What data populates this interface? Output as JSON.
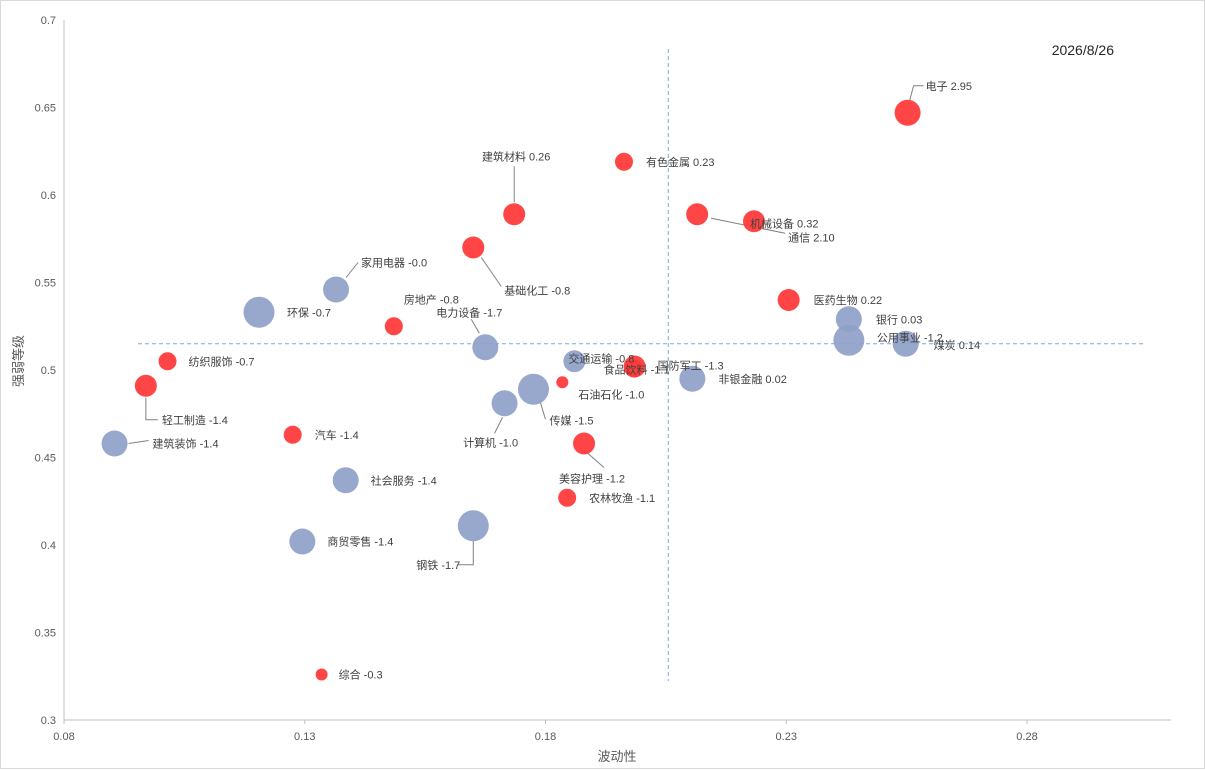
{
  "chart_data": {
    "type": "scatter",
    "title": "",
    "annotation": "2026/8/26",
    "xlabel": "波动性",
    "ylabel": "强弱等级",
    "xlim": [
      0.08,
      0.31
    ],
    "ylim": [
      0.3,
      0.7
    ],
    "xticks": [
      "0.08",
      "0.13",
      "0.18",
      "0.23",
      "0.28"
    ],
    "yticks": [
      "0.3",
      "0.35",
      "0.4",
      "0.45",
      "0.5",
      "0.55",
      "0.6",
      "0.65",
      "0.7"
    ],
    "reference_lines": {
      "x": 0.2055,
      "y": 0.515,
      "style": "dashed"
    },
    "colors": {
      "positive": "#ff3b3b",
      "negative": "#8ea1c8"
    },
    "points": [
      {
        "name": "电子",
        "value": "2.95",
        "x": 0.2552,
        "y": 0.647,
        "size": "large",
        "color": "positive"
      },
      {
        "name": "有色金属",
        "value": "0.23",
        "x": 0.1963,
        "y": 0.619,
        "size": "small",
        "color": "positive"
      },
      {
        "name": "建筑材料",
        "value": "0.26",
        "x": 0.1735,
        "y": 0.589,
        "size": "medium",
        "color": "positive"
      },
      {
        "name": "机械设备",
        "value": "0.32",
        "x": 0.2233,
        "y": 0.585,
        "size": "medium",
        "color": "positive"
      },
      {
        "name": "通信",
        "value": "2.10",
        "x": 0.2115,
        "y": 0.589,
        "size": "medium",
        "color": "positive"
      },
      {
        "name": "基础化工",
        "value": "-0.8",
        "x": 0.165,
        "y": 0.57,
        "size": "medium",
        "color": "positive"
      },
      {
        "name": "家用电器",
        "value": "-0.0",
        "x": 0.1365,
        "y": 0.546,
        "size": "large",
        "color": "negative"
      },
      {
        "name": "医药生物",
        "value": "0.22",
        "x": 0.2305,
        "y": 0.54,
        "size": "medium",
        "color": "positive"
      },
      {
        "name": "环保",
        "value": "-0.7",
        "x": 0.1205,
        "y": 0.533,
        "size": "xlarge",
        "color": "negative"
      },
      {
        "name": "房地产",
        "value": "-0.8",
        "x": 0.1485,
        "y": 0.525,
        "size": "small",
        "color": "positive"
      },
      {
        "name": "银行",
        "value": "0.03",
        "x": 0.243,
        "y": 0.529,
        "size": "large",
        "color": "negative"
      },
      {
        "name": "电力设备",
        "value": "-1.7",
        "x": 0.1675,
        "y": 0.513,
        "size": "large",
        "color": "negative"
      },
      {
        "name": "公用事业",
        "value": "-1.2",
        "x": 0.243,
        "y": 0.517,
        "size": "xlarge",
        "color": "negative"
      },
      {
        "name": "煤炭",
        "value": "0.14",
        "x": 0.2548,
        "y": 0.515,
        "size": "large",
        "color": "negative"
      },
      {
        "name": "纺织服饰",
        "value": "-0.7",
        "x": 0.1015,
        "y": 0.505,
        "size": "small",
        "color": "positive"
      },
      {
        "name": "交通运输",
        "value": "-0.8",
        "x": 0.186,
        "y": 0.505,
        "size": "medium",
        "color": "negative"
      },
      {
        "name": "食品饮料",
        "value": "-1.1",
        "x": 0.1985,
        "y": 0.502,
        "size": "medium",
        "color": "positive"
      },
      {
        "name": "国防军工",
        "value": "-1.3",
        "x": 0.1983,
        "y": 0.501,
        "size": "small",
        "color": "positive"
      },
      {
        "name": "非银金融",
        "value": "0.02",
        "x": 0.2105,
        "y": 0.495,
        "size": "large",
        "color": "negative"
      },
      {
        "name": "轻工制造",
        "value": "-1.4",
        "x": 0.097,
        "y": 0.491,
        "size": "medium",
        "color": "positive"
      },
      {
        "name": "石油石化",
        "value": "-1.0",
        "x": 0.1835,
        "y": 0.493,
        "size": "tiny",
        "color": "positive"
      },
      {
        "name": "传媒",
        "value": "-1.5",
        "x": 0.1775,
        "y": 0.489,
        "size": "xlarge",
        "color": "negative"
      },
      {
        "name": "计算机",
        "value": "-1.0",
        "x": 0.1715,
        "y": 0.481,
        "size": "large",
        "color": "negative"
      },
      {
        "name": "汽车",
        "value": "-1.4",
        "x": 0.1275,
        "y": 0.463,
        "size": "small",
        "color": "positive"
      },
      {
        "name": "建筑装饰",
        "value": "-1.4",
        "x": 0.0905,
        "y": 0.458,
        "size": "large",
        "color": "negative"
      },
      {
        "name": "美容护理",
        "value": "-1.2",
        "x": 0.188,
        "y": 0.458,
        "size": "medium",
        "color": "positive"
      },
      {
        "name": "社会服务",
        "value": "-1.4",
        "x": 0.1385,
        "y": 0.437,
        "size": "large",
        "color": "negative"
      },
      {
        "name": "农林牧渔",
        "value": "-1.1",
        "x": 0.1845,
        "y": 0.427,
        "size": "small",
        "color": "positive"
      },
      {
        "name": "钢铁",
        "value": "-1.7",
        "x": 0.165,
        "y": 0.411,
        "size": "xlarge",
        "color": "negative"
      },
      {
        "name": "商贸零售",
        "value": "-1.4",
        "x": 0.1295,
        "y": 0.402,
        "size": "large",
        "color": "negative"
      },
      {
        "name": "综合",
        "value": "-0.3",
        "x": 0.1335,
        "y": 0.326,
        "size": "tiny",
        "color": "positive"
      }
    ]
  }
}
